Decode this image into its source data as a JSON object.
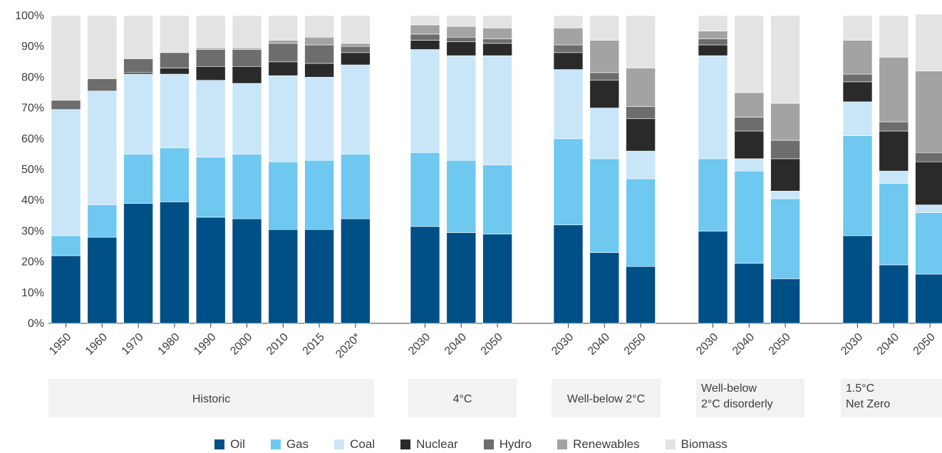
{
  "chart_data": {
    "type": "bar",
    "stacked": true,
    "y_axis": {
      "ylim": [
        0,
        100
      ],
      "ticks": [
        "0%",
        "10%",
        "20%",
        "30%",
        "40%",
        "50%",
        "60%",
        "70%",
        "80%",
        "90%",
        "100%"
      ]
    },
    "series": [
      {
        "name": "Oil",
        "color": "#004f86"
      },
      {
        "name": "Gas",
        "color": "#6ec8f0"
      },
      {
        "name": "Coal",
        "color": "#c9e6f8"
      },
      {
        "name": "Nuclear",
        "color": "#2a2a2a"
      },
      {
        "name": "Hydro",
        "color": "#6d6d6d"
      },
      {
        "name": "Renewables",
        "color": "#a3a3a3"
      },
      {
        "name": "Biomass",
        "color": "#e3e3e3"
      }
    ],
    "groups": [
      {
        "label": "Historic",
        "bars": [
          {
            "x": "1950",
            "values": [
              22,
              6.5,
              41,
              0,
              3,
              0,
              27.5
            ]
          },
          {
            "x": "1960",
            "values": [
              28,
              10.5,
              37,
              0,
              4,
              0,
              20.5
            ]
          },
          {
            "x": "1970",
            "values": [
              39,
              16,
              26,
              0.5,
              4.5,
              0,
              14
            ]
          },
          {
            "x": "1980",
            "values": [
              39.5,
              17.5,
              24,
              2,
              5,
              0,
              12
            ]
          },
          {
            "x": "1990",
            "values": [
              34.5,
              19.5,
              25,
              4.5,
              5.5,
              0.5,
              10.5
            ]
          },
          {
            "x": "2000",
            "values": [
              34,
              21,
              23,
              5.5,
              5.5,
              0.5,
              10.5
            ]
          },
          {
            "x": "2010",
            "values": [
              30.5,
              22,
              28,
              4.5,
              6,
              1,
              8
            ]
          },
          {
            "x": "2015",
            "values": [
              30.5,
              22.5,
              27,
              4.5,
              6,
              2.5,
              7
            ]
          },
          {
            "x": "2020*",
            "values": [
              34,
              21,
              29,
              4,
              2,
              1,
              9
            ]
          }
        ]
      },
      {
        "label": "4°C",
        "bars": [
          {
            "x": "2030",
            "values": [
              31.5,
              24,
              33.5,
              3,
              2,
              3,
              3
            ]
          },
          {
            "x": "2040",
            "values": [
              29.5,
              23.5,
              34,
              4.5,
              1.5,
              3.5,
              3.5
            ]
          },
          {
            "x": "2050",
            "values": [
              29,
              22.5,
              35.5,
              4,
              1.5,
              3.5,
              4
            ]
          }
        ]
      },
      {
        "label": "Well-below 2°C",
        "bars": [
          {
            "x": "2030",
            "values": [
              32,
              28,
              22.5,
              5.5,
              2.5,
              5.5,
              4
            ]
          },
          {
            "x": "2040",
            "values": [
              23,
              30.5,
              16.5,
              9,
              2.5,
              10.5,
              8
            ]
          },
          {
            "x": "2050",
            "values": [
              18.5,
              28.5,
              9,
              10.5,
              4,
              12.5,
              17
            ]
          }
        ]
      },
      {
        "label": "Well-below 2°C disorderly",
        "label_lines": [
          "Well-below",
          "2°C disorderly"
        ],
        "bars": [
          {
            "x": "2030",
            "values": [
              30,
              23.5,
              33.5,
              3.5,
              2,
              2.5,
              5
            ]
          },
          {
            "x": "2040",
            "values": [
              19.5,
              30,
              4,
              9,
              4.5,
              8,
              25
            ]
          },
          {
            "x": "2050",
            "values": [
              14.5,
              26,
              2.5,
              10.5,
              6,
              12,
              28.5
            ]
          }
        ]
      },
      {
        "label": "1.5°C Net Zero",
        "label_lines": [
          "1.5°C",
          "Net Zero"
        ],
        "bars": [
          {
            "x": "2030",
            "values": [
              28.5,
              32.5,
              11,
              6.5,
              2.5,
              11,
              8
            ]
          },
          {
            "x": "2040",
            "values": [
              19,
              26.5,
              4,
              13,
              3,
              21,
              13.5
            ]
          },
          {
            "x": "2050",
            "values": [
              16,
              20,
              2.5,
              14,
              3,
              26.5,
              18.5
            ]
          }
        ]
      }
    ]
  }
}
